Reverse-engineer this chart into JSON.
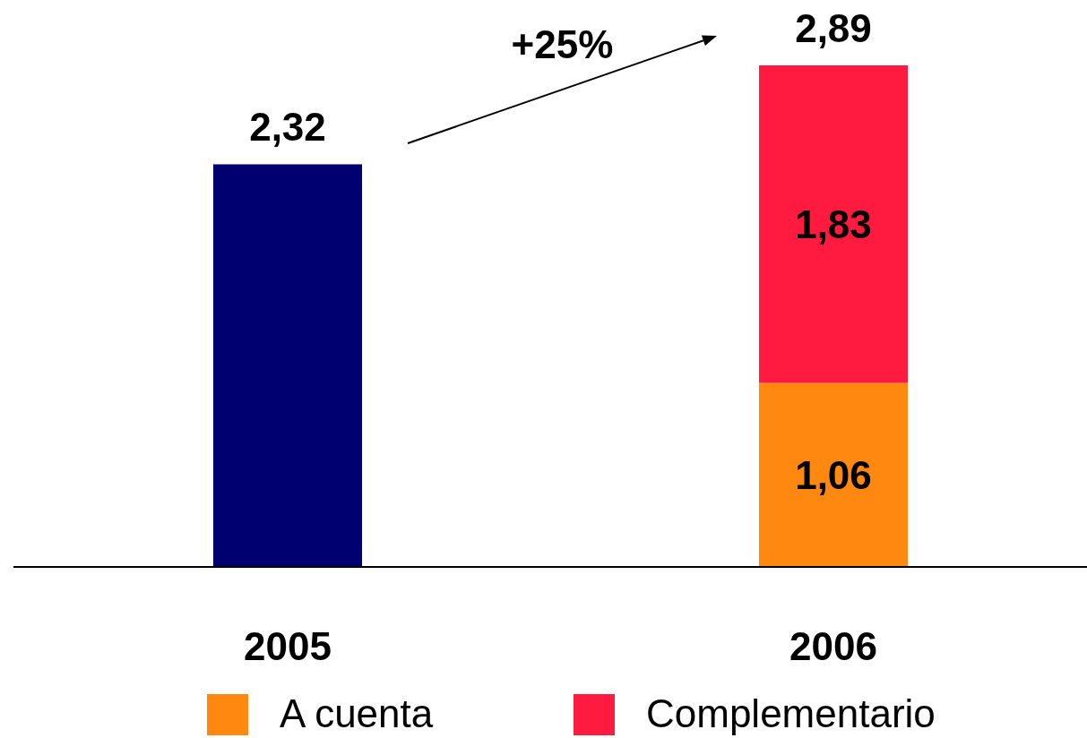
{
  "chart_data": {
    "type": "bar",
    "stacked": true,
    "categories": [
      "2005",
      "2006"
    ],
    "series": [
      {
        "color": "#000070",
        "values": [
          2.32,
          null
        ]
      },
      {
        "name": "A cuenta",
        "color": "#ff8811",
        "values": [
          null,
          1.06
        ],
        "value_labels": [
          null,
          "1,06"
        ]
      },
      {
        "name": "Complementario",
        "color": "#ff1a40",
        "values": [
          null,
          1.83
        ],
        "value_labels": [
          null,
          "1,83"
        ]
      }
    ],
    "totals": [
      "2,32",
      "2,89"
    ],
    "annotations": [
      "+25%"
    ],
    "legend": "bottom"
  }
}
